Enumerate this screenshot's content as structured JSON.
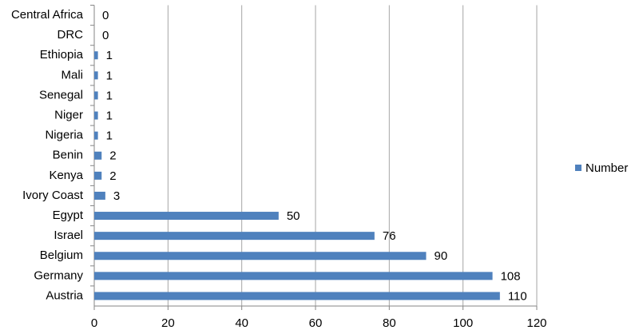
{
  "chart_data": {
    "type": "bar",
    "orientation": "horizontal",
    "categories": [
      "Central Africa",
      "DRC",
      "Ethiopia",
      "Mali",
      "Senegal",
      "Niger",
      "Nigeria",
      "Benin",
      "Kenya",
      "Ivory Coast",
      "Egypt",
      "Israel",
      "Belgium",
      "Germany",
      "Austria"
    ],
    "series": [
      {
        "name": "Number",
        "color": "#4f81bd",
        "values": [
          0,
          0,
          1,
          1,
          1,
          1,
          1,
          2,
          2,
          3,
          50,
          76,
          90,
          108,
          110
        ]
      }
    ],
    "xlim": [
      0,
      120
    ],
    "xticks": [
      0,
      20,
      40,
      60,
      80,
      100,
      120
    ],
    "grid": true,
    "data_labels": true,
    "legend": "right"
  }
}
